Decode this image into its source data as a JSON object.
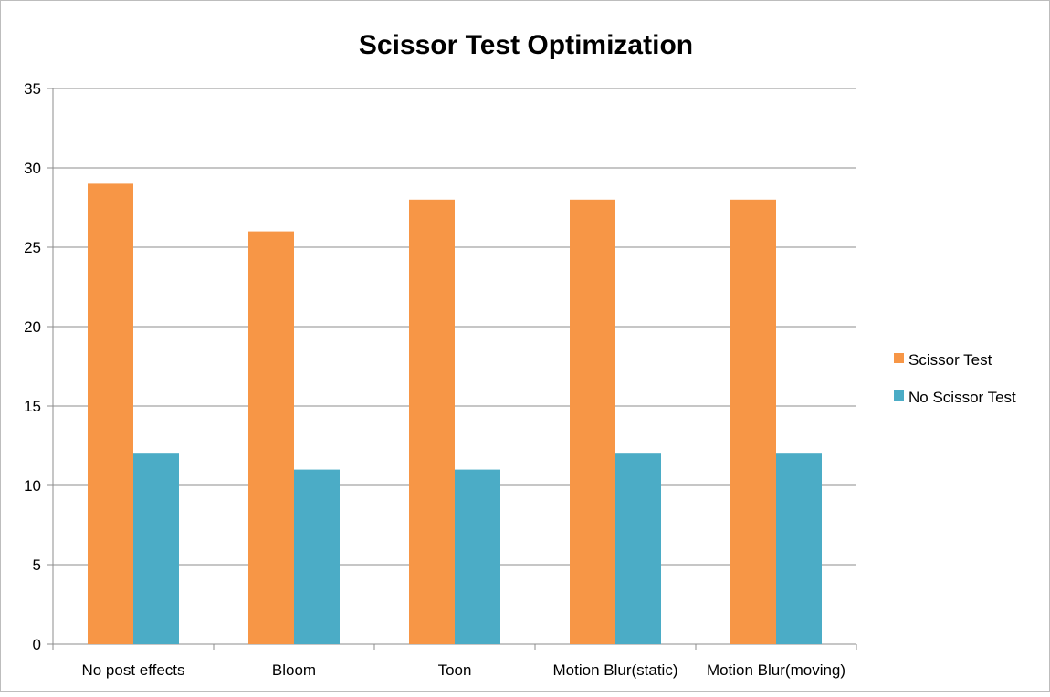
{
  "chart_data": {
    "type": "bar",
    "title": "Scissor Test Optimization",
    "xlabel": "",
    "ylabel": "",
    "categories": [
      "No post effects",
      "Bloom",
      "Toon",
      "Motion Blur(static)",
      "Motion Blur(moving)"
    ],
    "series": [
      {
        "name": "Scissor Test",
        "color": "#f79646",
        "values": [
          29,
          26,
          28,
          28,
          28
        ]
      },
      {
        "name": "No Scissor Test",
        "color": "#4bacc6",
        "values": [
          12,
          11,
          11,
          12,
          12
        ]
      }
    ],
    "ylim": [
      0,
      35
    ],
    "yticks": [
      0,
      5,
      10,
      15,
      20,
      25,
      30,
      35
    ],
    "grid": true,
    "legend": "right"
  }
}
